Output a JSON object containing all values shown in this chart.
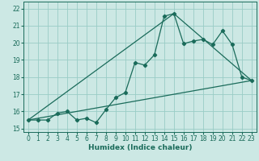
{
  "xlabel": "Humidex (Indice chaleur)",
  "background_color": "#cce8e4",
  "grid_color": "#99ccc6",
  "line_color": "#1a6b5a",
  "xlim": [
    -0.5,
    23.5
  ],
  "ylim": [
    14.8,
    22.4
  ],
  "xticks": [
    0,
    1,
    2,
    3,
    4,
    5,
    6,
    7,
    8,
    9,
    10,
    11,
    12,
    13,
    14,
    15,
    16,
    17,
    18,
    19,
    20,
    21,
    22,
    23
  ],
  "yticks": [
    15,
    16,
    17,
    18,
    19,
    20,
    21,
    22
  ],
  "line1_x": [
    0,
    1,
    2,
    3,
    4,
    5,
    6,
    7,
    8,
    9,
    10,
    11,
    12,
    13,
    14,
    15,
    16,
    17,
    18,
    19,
    20,
    21,
    22,
    23
  ],
  "line1_y": [
    15.5,
    15.5,
    15.5,
    15.9,
    16.0,
    15.5,
    15.6,
    15.35,
    16.1,
    16.8,
    17.1,
    18.85,
    18.7,
    19.3,
    21.55,
    21.7,
    19.95,
    20.1,
    20.2,
    19.9,
    20.7,
    19.9,
    18.0,
    17.8
  ],
  "line2_x": [
    0,
    23
  ],
  "line2_y": [
    15.5,
    17.8
  ],
  "line3_x": [
    0,
    15,
    23
  ],
  "line3_y": [
    15.5,
    21.7,
    17.8
  ],
  "marker_style": "D",
  "marker_size": 2.2,
  "linewidth": 0.9,
  "xlabel_fontsize": 6.5,
  "tick_fontsize": 5.5
}
